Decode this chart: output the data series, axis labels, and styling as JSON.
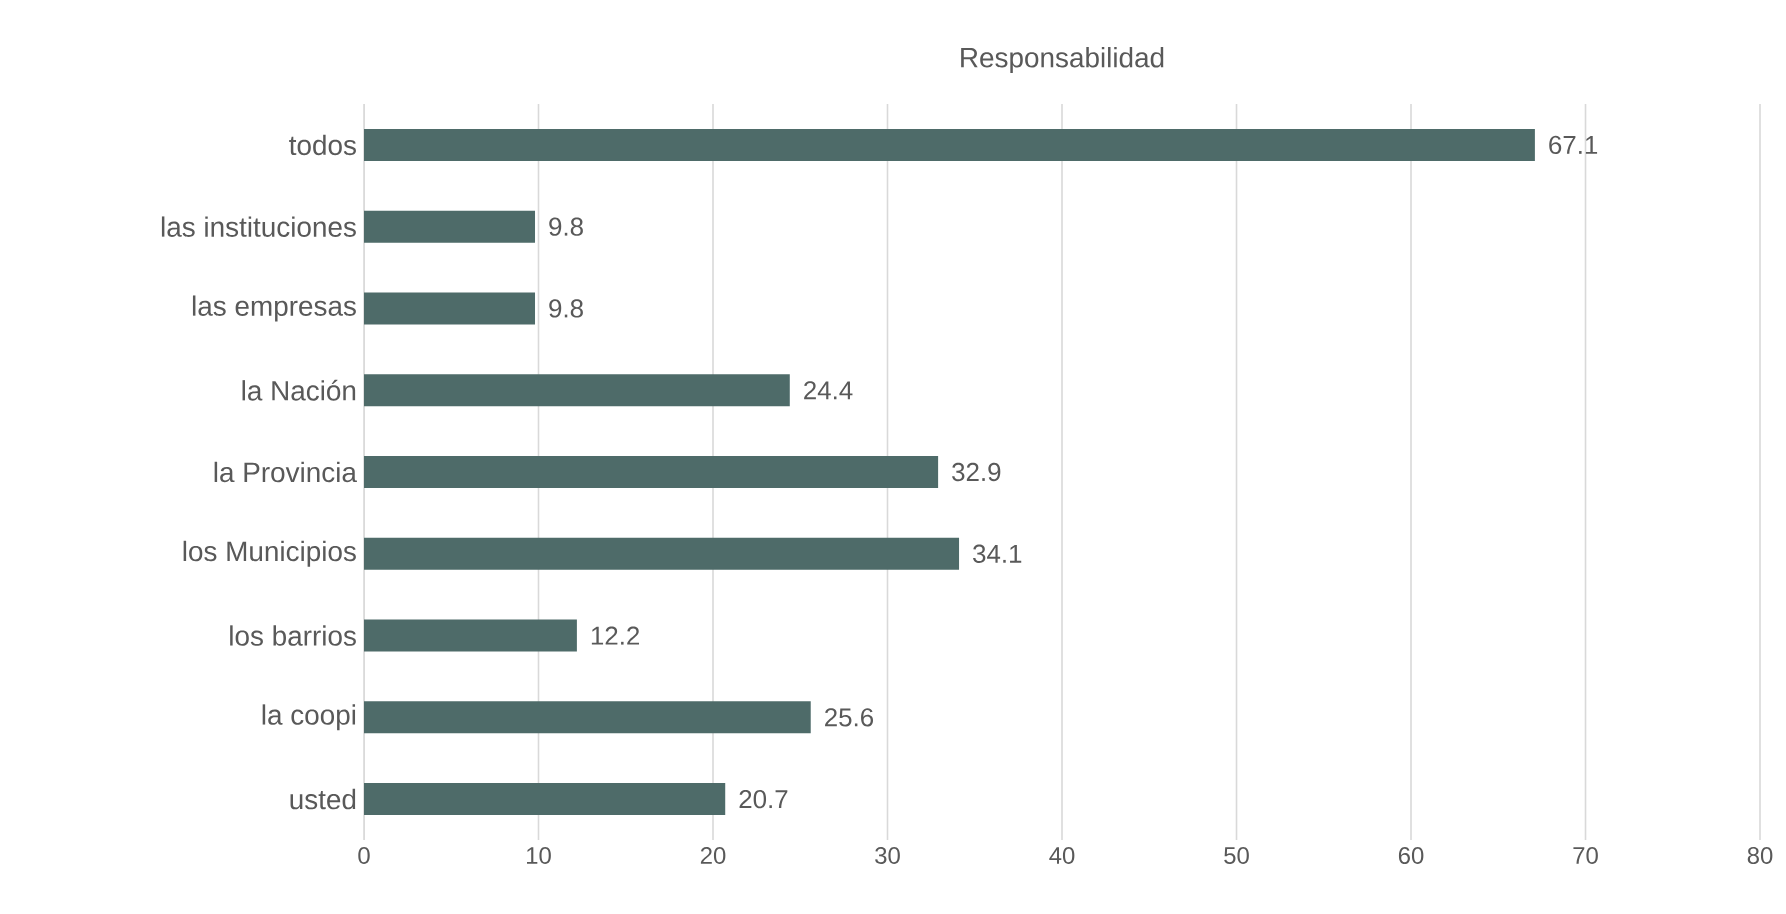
{
  "chart_data": {
    "type": "bar",
    "orientation": "horizontal",
    "title": "Responsabilidad",
    "categories": [
      "todos",
      "las instituciones",
      "las empresas",
      "la Nación",
      "la Provincia",
      "los Municipios",
      "los barrios",
      "la coopi",
      "usted"
    ],
    "values": [
      67.1,
      9.8,
      9.8,
      24.4,
      32.9,
      34.1,
      12.2,
      25.6,
      20.7
    ],
    "color": "#4e6b69",
    "xlim": [
      0,
      80
    ],
    "xticks": [
      0,
      10,
      20,
      30,
      40,
      50,
      60,
      70,
      80
    ],
    "grid": "x",
    "data_labels": true
  }
}
